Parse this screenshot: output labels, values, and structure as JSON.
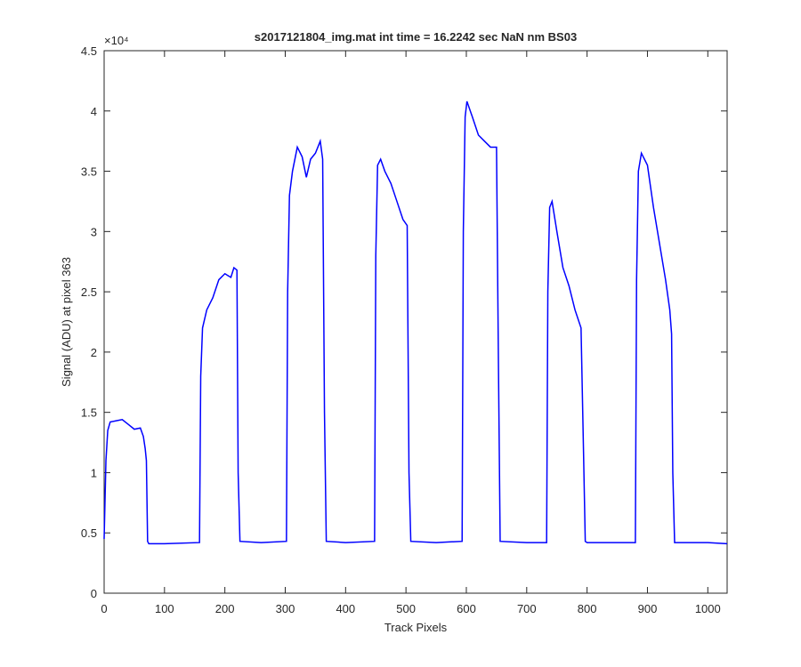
{
  "chart_data": {
    "type": "line",
    "title": "s2017121804_img.mat int time = 16.2242 sec  NaN nm BS03",
    "x_label": "Track Pixels",
    "y_label": "Signal (ADU) at pixel 363",
    "y_exponent_label": "×10⁴",
    "xlim": [
      0,
      1032
    ],
    "xticks": [
      0,
      100,
      200,
      300,
      400,
      500,
      600,
      700,
      800,
      900,
      1000
    ],
    "ylim": [
      0,
      4.5
    ],
    "yticks": [
      0,
      0.5,
      1,
      1.5,
      2,
      2.5,
      3,
      3.5,
      4,
      4.5
    ],
    "series": [
      {
        "color": "#0000ff",
        "x": [
          0,
          3,
          6,
          10,
          20,
          30,
          40,
          50,
          60,
          65,
          68,
          70,
          72,
          74,
          100,
          158,
          160,
          163,
          170,
          180,
          190,
          200,
          210,
          215,
          220,
          222,
          225,
          260,
          302,
          304,
          307,
          312,
          320,
          328,
          335,
          342,
          350,
          358,
          362,
          365,
          368,
          400,
          448,
          450,
          453,
          458,
          465,
          475,
          485,
          495,
          502,
          505,
          508,
          550,
          593,
          595,
          598,
          601,
          610,
          620,
          630,
          640,
          650,
          653,
          656,
          700,
          733,
          735,
          738,
          742,
          750,
          760,
          770,
          780,
          790,
          794,
          797,
          800,
          850,
          880,
          882,
          885,
          890,
          900,
          910,
          920,
          930,
          937,
          940,
          942,
          945,
          1000,
          1032
        ],
        "values": [
          0.45,
          1.1,
          1.35,
          1.42,
          1.43,
          1.44,
          1.4,
          1.36,
          1.37,
          1.3,
          1.2,
          1.1,
          0.43,
          0.41,
          0.41,
          0.42,
          1.8,
          2.2,
          2.35,
          2.45,
          2.6,
          2.65,
          2.62,
          2.7,
          2.68,
          1.0,
          0.43,
          0.42,
          0.43,
          2.5,
          3.3,
          3.5,
          3.7,
          3.62,
          3.45,
          3.6,
          3.65,
          3.75,
          3.6,
          1.5,
          0.43,
          0.42,
          0.43,
          2.8,
          3.55,
          3.6,
          3.5,
          3.4,
          3.25,
          3.1,
          3.05,
          1.0,
          0.43,
          0.42,
          0.43,
          3.0,
          3.95,
          4.08,
          3.95,
          3.8,
          3.75,
          3.7,
          3.7,
          2.0,
          0.43,
          0.42,
          0.42,
          2.5,
          3.2,
          3.25,
          3.0,
          2.7,
          2.55,
          2.35,
          2.2,
          1.2,
          0.43,
          0.42,
          0.42,
          0.42,
          2.6,
          3.5,
          3.65,
          3.55,
          3.2,
          2.9,
          2.6,
          2.35,
          2.15,
          1.0,
          0.42,
          0.42,
          0.41
        ]
      }
    ]
  }
}
